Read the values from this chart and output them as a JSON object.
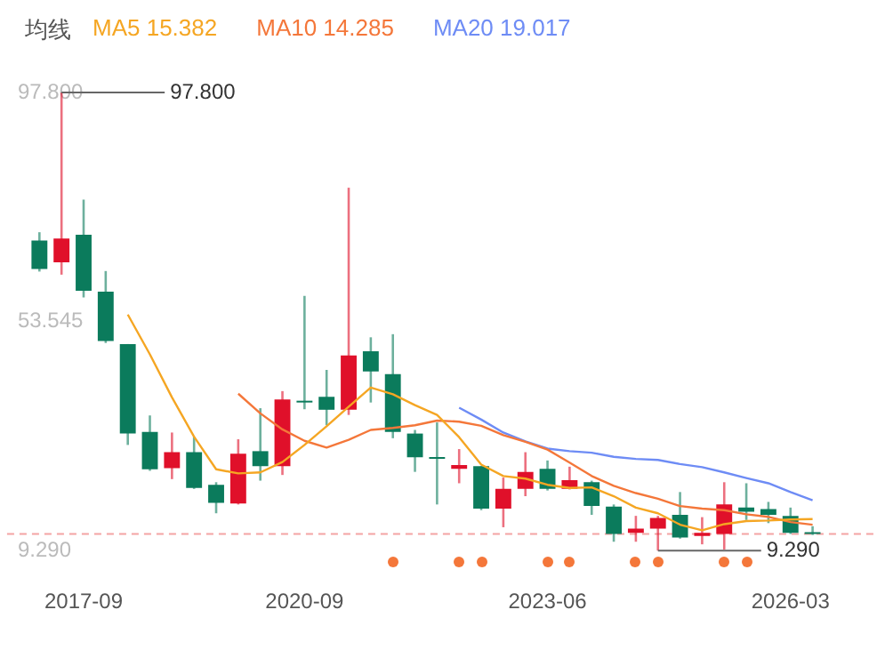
{
  "chart_data": {
    "type": "candlestick",
    "title": "均线",
    "legend": "top left",
    "grid": false,
    "marker": "none",
    "categories": [
      null,
      null,
      "2017-09",
      null,
      null,
      null,
      null,
      null,
      null,
      null,
      null,
      null,
      "2020-09",
      null,
      null,
      null,
      null,
      null,
      null,
      null,
      null,
      null,
      null,
      "2023-06",
      null,
      null,
      null,
      null,
      null,
      null,
      null,
      null,
      null,
      null,
      "2026-03",
      null
    ],
    "ohlc": [
      [
        69.2,
        70.8,
        63.2,
        63.7
      ],
      [
        65.0,
        97.8,
        62.6,
        69.6
      ],
      [
        70.3,
        77.1,
        58.2,
        59.5
      ],
      [
        59.3,
        63.3,
        49.4,
        49.8
      ],
      [
        49.2,
        49.2,
        29.7,
        31.9
      ],
      [
        32.2,
        35.4,
        24.7,
        25.0
      ],
      [
        25.2,
        32.1,
        23.1,
        28.3
      ],
      [
        28.3,
        31.3,
        21.2,
        21.4
      ],
      [
        22.0,
        22.5,
        16.5,
        18.5
      ],
      [
        18.4,
        30.8,
        18.2,
        28.0
      ],
      [
        28.5,
        36.8,
        22.8,
        25.6
      ],
      [
        25.6,
        40.1,
        23.9,
        38.5
      ],
      [
        38.2,
        58.5,
        36.6,
        37.9
      ],
      [
        39.0,
        44.2,
        33.5,
        36.5
      ],
      [
        36.5,
        79.4,
        35.5,
        47.0
      ],
      [
        47.8,
        50.5,
        37.9,
        43.9
      ],
      [
        43.4,
        51.1,
        31.0,
        32.2
      ],
      [
        31.9,
        32.6,
        24.5,
        27.3
      ],
      [
        27.3,
        34.05,
        18.2,
        27.0
      ],
      [
        25.1,
        28.9,
        22.3,
        25.8
      ],
      [
        25.6,
        25.6,
        17.1,
        17.4
      ],
      [
        17.4,
        23.4,
        13.8,
        21.2
      ],
      [
        21.2,
        28.3,
        19.8,
        24.5
      ],
      [
        25.1,
        26.7,
        20.9,
        21.2
      ],
      [
        21.2,
        25.5,
        21.1,
        22.9
      ],
      [
        22.5,
        22.8,
        16.2,
        17.9
      ],
      [
        17.8,
        18.2,
        11.0,
        12.5
      ],
      [
        12.7,
        16.0,
        11.0,
        13.55
      ],
      [
        13.55,
        16.0,
        9.29,
        15.6
      ],
      [
        16.2,
        20.6,
        11.6,
        11.8
      ],
      [
        12.1,
        15.75,
        10.5,
        12.7
      ],
      [
        12.5,
        22.5,
        9.5,
        18.2
      ],
      [
        17.6,
        22.3,
        15.2,
        16.8
      ],
      [
        17.3,
        18.7,
        14.6,
        16.2
      ],
      [
        16.0,
        17.6,
        12.5,
        12.7
      ],
      [
        12.7,
        14.0,
        12.3,
        12.5
      ]
    ],
    "colors": [
      "#0b7b5c",
      "#e0102a",
      "#0b7b5c",
      "#0b7b5c",
      "#0b7b5c",
      "#0b7b5c",
      "#e0102a",
      "#0b7b5c",
      "#0b7b5c",
      "#e0102a",
      "#0b7b5c",
      "#e0102a",
      "#0b7b5c",
      "#0b7b5c",
      "#e0102a",
      "#0b7b5c",
      "#0b7b5c",
      "#0b7b5c",
      "#0b7b5c",
      "#e0102a",
      "#0b7b5c",
      "#e0102a",
      "#e0102a",
      "#0b7b5c",
      "#e0102a",
      "#0b7b5c",
      "#0b7b5c",
      "#e0102a",
      "#e0102a",
      "#0b7b5c",
      "#e0102a",
      "#e0102a",
      "#0b7b5c",
      "#0b7b5c",
      "#0b7b5c",
      "#0b7b5c"
    ],
    "series": [
      {
        "name": "MA5 15.382",
        "type": "line",
        "color": "#f5a623",
        "values": [
          null,
          null,
          null,
          null,
          54.9,
          47.2,
          38.9,
          31.3,
          25.0,
          24.2,
          24.4,
          26.4,
          29.7,
          33.3,
          37.1,
          40.8,
          39.5,
          37.4,
          35.5,
          31.2,
          25.9,
          23.7,
          23.2,
          22.0,
          21.4,
          21.5,
          19.8,
          17.6,
          16.5,
          14.3,
          13.2,
          14.4,
          15.0,
          15.1,
          15.3,
          15.382
        ]
      },
      {
        "name": "MA10 14.285",
        "type": "line",
        "color": "#f4773a",
        "values": [
          null,
          null,
          null,
          null,
          null,
          null,
          null,
          null,
          null,
          39.6,
          35.8,
          32.7,
          30.5,
          29.2,
          30.7,
          32.6,
          33.0,
          33.5,
          34.4,
          34.2,
          33.4,
          31.6,
          30.3,
          28.8,
          26.3,
          23.7,
          21.8,
          20.4,
          19.3,
          17.9,
          17.4,
          17.1,
          16.3,
          15.8,
          14.8,
          14.285
        ]
      },
      {
        "name": "MA20 19.017",
        "type": "line",
        "color": "#6e8cf5",
        "values": [
          null,
          null,
          null,
          null,
          null,
          null,
          null,
          null,
          null,
          null,
          null,
          null,
          null,
          null,
          null,
          null,
          null,
          null,
          null,
          36.9,
          34.6,
          32.1,
          30.4,
          29.0,
          28.5,
          28.2,
          27.4,
          27.0,
          26.8,
          26.0,
          25.4,
          24.4,
          23.3,
          22.3,
          20.6,
          19.017
        ]
      }
    ],
    "ylim": [
      9.29,
      97.8
    ],
    "yticks": [
      {
        "value": 9.29,
        "label": "9.290"
      },
      53.545,
      {
        "value": 97.8,
        "label": "97.800"
      }
    ],
    "ref_lines": [
      {
        "axis": "y",
        "value": 12.5,
        "color": "#f4a3a3",
        "line_style": "dashed"
      }
    ],
    "annotations": [
      "97.800",
      "9.290"
    ]
  }
}
